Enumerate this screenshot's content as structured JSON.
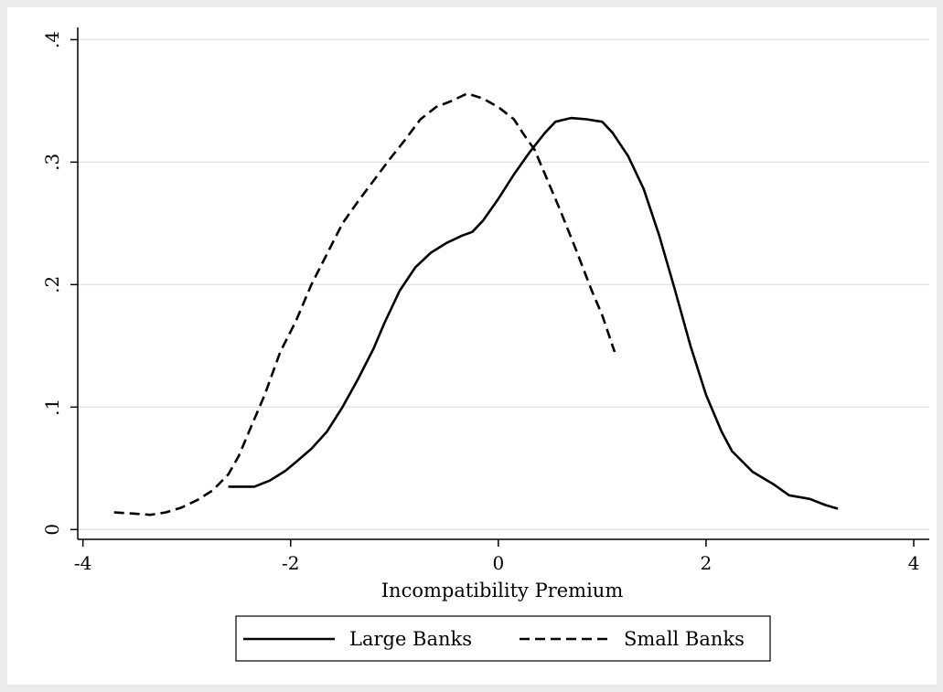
{
  "chart_data": {
    "type": "line",
    "xlabel": "Incompatibility Premium",
    "ylabel": "",
    "xlim": [
      -4.05,
      4.15
    ],
    "ylim": [
      -0.008,
      0.41
    ],
    "x_ticks": [
      -4,
      -2,
      0,
      2,
      4
    ],
    "x_tick_labels": [
      "-4",
      "-2",
      "0",
      "2",
      "4"
    ],
    "y_ticks": [
      0,
      0.1,
      0.2,
      0.3,
      0.4
    ],
    "y_tick_labels": [
      "0",
      ".1",
      ".2",
      ".3",
      ".4"
    ],
    "grid": "horizontal",
    "legend_position": "bottom",
    "series": [
      {
        "name": "Large Banks",
        "style": "solid",
        "points": [
          [
            -2.6,
            0.035
          ],
          [
            -2.45,
            0.035
          ],
          [
            -2.35,
            0.035
          ],
          [
            -2.2,
            0.04
          ],
          [
            -2.05,
            0.048
          ],
          [
            -1.95,
            0.055
          ],
          [
            -1.8,
            0.066
          ],
          [
            -1.65,
            0.08
          ],
          [
            -1.5,
            0.1
          ],
          [
            -1.35,
            0.123
          ],
          [
            -1.2,
            0.148
          ],
          [
            -1.1,
            0.168
          ],
          [
            -0.95,
            0.195
          ],
          [
            -0.8,
            0.214
          ],
          [
            -0.65,
            0.226
          ],
          [
            -0.5,
            0.234
          ],
          [
            -0.35,
            0.24
          ],
          [
            -0.25,
            0.243
          ],
          [
            -0.15,
            0.252
          ],
          [
            0.0,
            0.27
          ],
          [
            0.15,
            0.29
          ],
          [
            0.3,
            0.308
          ],
          [
            0.45,
            0.324
          ],
          [
            0.55,
            0.333
          ],
          [
            0.7,
            0.336
          ],
          [
            0.85,
            0.335
          ],
          [
            1.0,
            0.333
          ],
          [
            1.1,
            0.324
          ],
          [
            1.25,
            0.305
          ],
          [
            1.4,
            0.278
          ],
          [
            1.55,
            0.24
          ],
          [
            1.7,
            0.196
          ],
          [
            1.85,
            0.15
          ],
          [
            2.0,
            0.11
          ],
          [
            2.15,
            0.08
          ],
          [
            2.25,
            0.064
          ],
          [
            2.45,
            0.047
          ],
          [
            2.65,
            0.037
          ],
          [
            2.8,
            0.028
          ],
          [
            3.0,
            0.025
          ],
          [
            3.15,
            0.02
          ],
          [
            3.27,
            0.017
          ]
        ]
      },
      {
        "name": "Small Banks",
        "style": "dashed",
        "points": [
          [
            -3.7,
            0.014
          ],
          [
            -3.5,
            0.013
          ],
          [
            -3.35,
            0.012
          ],
          [
            -3.2,
            0.014
          ],
          [
            -3.05,
            0.018
          ],
          [
            -2.9,
            0.024
          ],
          [
            -2.75,
            0.032
          ],
          [
            -2.6,
            0.045
          ],
          [
            -2.5,
            0.06
          ],
          [
            -2.4,
            0.08
          ],
          [
            -2.25,
            0.11
          ],
          [
            -2.1,
            0.145
          ],
          [
            -1.95,
            0.17
          ],
          [
            -1.8,
            0.2
          ],
          [
            -1.65,
            0.225
          ],
          [
            -1.5,
            0.25
          ],
          [
            -1.35,
            0.268
          ],
          [
            -1.2,
            0.285
          ],
          [
            -1.05,
            0.302
          ],
          [
            -0.9,
            0.318
          ],
          [
            -0.75,
            0.335
          ],
          [
            -0.6,
            0.345
          ],
          [
            -0.45,
            0.35
          ],
          [
            -0.3,
            0.356
          ],
          [
            -0.15,
            0.352
          ],
          [
            0.0,
            0.345
          ],
          [
            0.15,
            0.335
          ],
          [
            0.25,
            0.322
          ],
          [
            0.35,
            0.31
          ],
          [
            0.45,
            0.29
          ],
          [
            0.6,
            0.26
          ],
          [
            0.75,
            0.228
          ],
          [
            0.9,
            0.195
          ],
          [
            1.0,
            0.175
          ],
          [
            1.12,
            0.145
          ]
        ]
      }
    ]
  }
}
